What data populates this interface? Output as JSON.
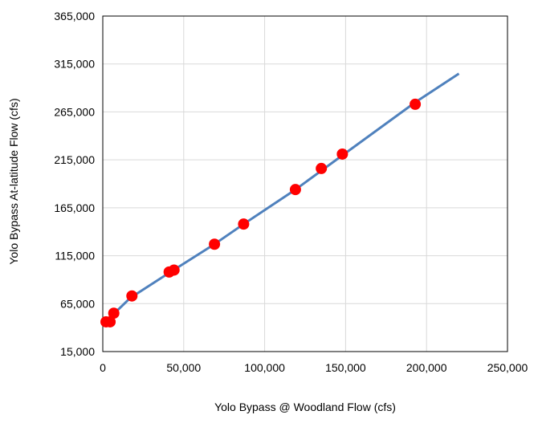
{
  "chart_data": {
    "type": "scatter",
    "title": "",
    "xlabel": "Yolo Bypass @ Woodland Flow (cfs)",
    "ylabel": "Yolo Bypass At-latitude Flow (cfs)",
    "xlim": [
      0,
      250000
    ],
    "ylim": [
      15000,
      365000
    ],
    "x_ticks": [
      0,
      50000,
      100000,
      150000,
      200000,
      250000
    ],
    "x_tick_labels": [
      "0",
      "50,000",
      "100,000",
      "150,000",
      "200,000",
      "250,000"
    ],
    "y_ticks": [
      15000,
      65000,
      115000,
      165000,
      215000,
      265000,
      315000,
      365000
    ],
    "y_tick_labels": [
      "15,000",
      "65,000",
      "115,000",
      "165,000",
      "215,000",
      "265,000",
      "315,000",
      "365,000"
    ],
    "grid": true,
    "legend": "none",
    "series": [
      {
        "kind": "points",
        "color": "#ff0000",
        "points": [
          {
            "x": 2000,
            "y": 46000
          },
          {
            "x": 4500,
            "y": 46000
          },
          {
            "x": 6800,
            "y": 55000
          },
          {
            "x": 18000,
            "y": 73000
          },
          {
            "x": 41000,
            "y": 98000
          },
          {
            "x": 44000,
            "y": 100000
          },
          {
            "x": 69000,
            "y": 127000
          },
          {
            "x": 87000,
            "y": 148000
          },
          {
            "x": 119000,
            "y": 184000
          },
          {
            "x": 135000,
            "y": 206000
          },
          {
            "x": 148000,
            "y": 221000
          },
          {
            "x": 193000,
            "y": 273000
          }
        ]
      },
      {
        "kind": "line",
        "color": "#4f81bd",
        "points": [
          {
            "x": 2000,
            "y": 44000
          },
          {
            "x": 6000,
            "y": 53000
          },
          {
            "x": 17000,
            "y": 71000
          },
          {
            "x": 40000,
            "y": 96000
          },
          {
            "x": 69000,
            "y": 127000
          },
          {
            "x": 87000,
            "y": 148000
          },
          {
            "x": 119000,
            "y": 184000
          },
          {
            "x": 193000,
            "y": 275000
          },
          {
            "x": 220000,
            "y": 305000
          }
        ]
      }
    ]
  }
}
